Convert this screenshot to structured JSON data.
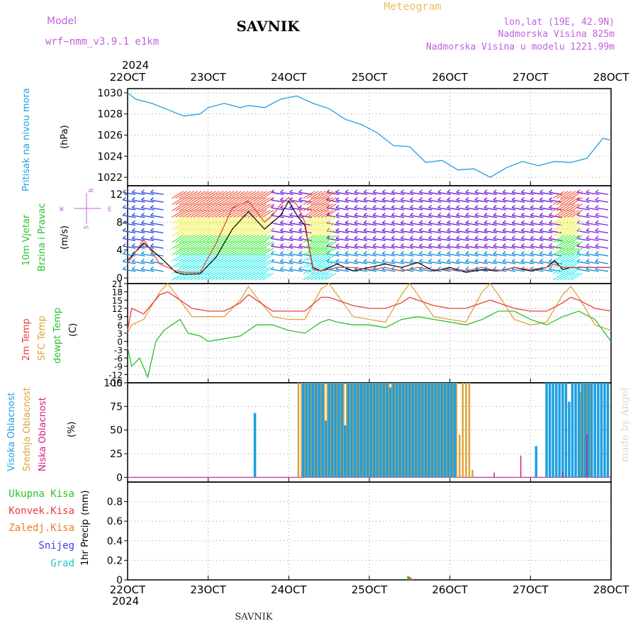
{
  "header": {
    "model_label": "Model",
    "model_name": "wrf−nmm_v3.9.1  e1km",
    "title": "SAVNIK",
    "product": "Meteogram",
    "lonlat": "lon,lat (19E, 42.9N)",
    "elevation": "Nadmorska Visina 825m",
    "model_elevation": "Nadmorska Visina u modelu 1221.99m",
    "year": "2024"
  },
  "footer": {
    "year": "2024",
    "station": "SAVNIK",
    "watermark": "made by Angel"
  },
  "colors": {
    "pressure": "#1E9FE0",
    "temp2m": "#E8403A",
    "sfc_temp": "#DDA23A",
    "dewpt": "#2CC02C",
    "high_cloud": "#1E9FE0",
    "mid_cloud": "#DDA23A",
    "low_cloud": "#D0208A",
    "precip_total": "#2CC02C",
    "precip_conv": "#E8403A",
    "precip_frz": "#F07A28",
    "snow": "#4040E0",
    "hail": "#20C8C8",
    "wind_speed": "#000000",
    "wind_gust": "#E8403A"
  },
  "chart_data": [
    {
      "type": "line",
      "title": "",
      "ylabel": "Pritisak na nivou mora",
      "unit": "(hPa)",
      "x_ticks": [
        "22OCT",
        "23OCT",
        "24OCT",
        "25OCT",
        "26OCT",
        "27OCT",
        "28OCT"
      ],
      "ylim": [
        1021.2,
        1030.4
      ],
      "yticks": [
        "1022",
        "1024",
        "1026",
        "1028",
        "1030"
      ],
      "series": [
        {
          "name": "",
          "x": [
            0,
            0.1,
            0.3,
            0.5,
            0.7,
            0.9,
            1.0,
            1.2,
            1.4,
            1.5,
            1.7,
            1.9,
            2.1,
            2.3,
            2.5,
            2.7,
            2.9,
            3.1,
            3.3,
            3.5,
            3.7,
            3.9,
            4.1,
            4.3,
            4.5,
            4.7,
            4.9,
            5.1,
            5.3,
            5.5,
            5.7,
            5.9,
            6.0
          ],
          "values": [
            1030.0,
            1029.4,
            1029.0,
            1028.4,
            1027.8,
            1028.0,
            1028.6,
            1029.0,
            1028.6,
            1028.8,
            1028.6,
            1029.4,
            1029.7,
            1029.0,
            1028.5,
            1027.5,
            1027.0,
            1026.2,
            1025.0,
            1024.9,
            1023.4,
            1023.6,
            1022.7,
            1022.8,
            1022.0,
            1022.9,
            1023.5,
            1023.1,
            1023.5,
            1023.4,
            1023.8,
            1025.7,
            1025.5
          ]
        }
      ]
    },
    {
      "type": "line",
      "title": "",
      "ylabel": "10m Vjetar Brzina i Pravac",
      "unit": "(m/s)",
      "legend": [
        "N",
        "W",
        "E",
        "S"
      ],
      "ylim": [
        -0.8,
        13.2
      ],
      "yticks": [
        "0",
        "4",
        "8",
        "12"
      ],
      "series": [
        {
          "name": "",
          "x": [
            0,
            0.2,
            0.4,
            0.6,
            0.7,
            0.9,
            1.1,
            1.3,
            1.5,
            1.7,
            1.8,
            1.9,
            2.0,
            2.1,
            2.2,
            2.3,
            2.4,
            2.6,
            2.8,
            3.0,
            3.2,
            3.4,
            3.6,
            3.8,
            4.0,
            4.2,
            4.4,
            4.6,
            4.8,
            5.0,
            5.2,
            5.3,
            5.4,
            5.5,
            5.6,
            5.8,
            6.0
          ],
          "values": [
            2.5,
            5.0,
            3.0,
            0.8,
            0.5,
            0.6,
            3.0,
            7.0,
            9.5,
            7.0,
            8.0,
            9.0,
            11.0,
            9.0,
            7.5,
            1.5,
            1.0,
            2.0,
            1.0,
            1.5,
            2.0,
            1.5,
            2.2,
            1.0,
            1.5,
            0.8,
            1.2,
            1.0,
            1.5,
            1.0,
            1.5,
            2.5,
            1.2,
            1.5,
            1.5,
            1.5,
            1.5
          ]
        },
        {
          "name": "",
          "x": [
            0,
            0.2,
            0.4,
            0.6,
            0.7,
            0.9,
            1.1,
            1.3,
            1.5,
            1.7,
            1.8,
            1.9,
            2.0,
            2.1,
            2.2,
            2.3,
            2.4,
            2.6,
            2.8,
            3.0,
            3.2,
            3.4,
            3.6,
            3.8,
            4.0,
            4.2,
            4.4,
            4.6,
            4.8,
            5.0,
            5.2,
            5.3,
            5.4,
            5.5,
            5.6,
            5.8,
            6.0
          ],
          "values": [
            2.0,
            5.5,
            2.0,
            1.0,
            0.8,
            0.8,
            5.0,
            10.0,
            11.0,
            8.0,
            9.0,
            10.5,
            11.5,
            10.5,
            8.0,
            1.2,
            1.0,
            1.5,
            1.5,
            1.2,
            1.5,
            1.0,
            1.5,
            1.2,
            1.2,
            1.0,
            1.5,
            1.0,
            1.5,
            1.2,
            1.5,
            2.0,
            1.5,
            1.5,
            1.5,
            1.5,
            1.5
          ]
        }
      ]
    },
    {
      "type": "line",
      "title": "",
      "ylabel": "2m Temp / SFC Temp / dewpt Temp",
      "unit": "(C)",
      "ylim": [
        -15,
        21
      ],
      "yticks": [
        "21",
        "18",
        "15",
        "12",
        "9",
        "6",
        "3",
        "0",
        "-3",
        "-6",
        "-9",
        "-12",
        "-15"
      ],
      "series": [
        {
          "name": "2m Temp",
          "x": [
            0,
            0.05,
            0.2,
            0.4,
            0.5,
            0.6,
            0.8,
            1.0,
            1.2,
            1.4,
            1.5,
            1.6,
            1.8,
            2.0,
            2.2,
            2.4,
            2.5,
            2.6,
            2.8,
            3.0,
            3.2,
            3.4,
            3.5,
            3.6,
            3.8,
            4.0,
            4.2,
            4.4,
            4.5,
            4.6,
            4.8,
            5.0,
            5.2,
            5.4,
            5.5,
            5.6,
            5.8,
            6.0
          ],
          "values": [
            4,
            12,
            10,
            17,
            18,
            16,
            12,
            11,
            11,
            14,
            17,
            15,
            11,
            11,
            11,
            16,
            16,
            15,
            13,
            12,
            12,
            14,
            16,
            15,
            13,
            12,
            12,
            14,
            15,
            14,
            12,
            11,
            11,
            14,
            16,
            15,
            12,
            11
          ]
        },
        {
          "name": "SFC Temp",
          "x": [
            0,
            0.05,
            0.2,
            0.4,
            0.5,
            0.6,
            0.8,
            1.0,
            1.2,
            1.4,
            1.5,
            1.6,
            1.8,
            2.0,
            2.2,
            2.4,
            2.5,
            2.6,
            2.8,
            3.0,
            3.2,
            3.4,
            3.5,
            3.6,
            3.8,
            4.0,
            4.2,
            4.4,
            4.5,
            4.6,
            4.8,
            5.0,
            5.2,
            5.4,
            5.5,
            5.6,
            5.8,
            6.0
          ],
          "values": [
            3,
            6,
            8,
            18,
            21,
            17,
            9,
            9,
            9,
            15,
            20,
            16,
            9,
            8,
            8,
            19,
            21,
            17,
            9,
            8,
            7,
            17,
            21,
            17,
            9,
            8,
            7,
            18,
            21,
            17,
            8,
            6,
            7,
            17,
            20,
            16,
            6,
            4
          ]
        },
        {
          "name": "dewpt Temp",
          "x": [
            0,
            0.05,
            0.15,
            0.25,
            0.35,
            0.45,
            0.55,
            0.65,
            0.75,
            0.9,
            1.0,
            1.2,
            1.4,
            1.6,
            1.8,
            2.0,
            2.2,
            2.4,
            2.5,
            2.6,
            2.8,
            3.0,
            3.2,
            3.4,
            3.6,
            3.8,
            4.0,
            4.2,
            4.4,
            4.6,
            4.8,
            5.0,
            5.2,
            5.4,
            5.6,
            5.8,
            6.0
          ],
          "values": [
            -2,
            -9,
            -6,
            -13,
            0,
            4,
            6,
            8,
            3,
            2,
            0,
            1,
            2,
            6,
            6,
            4,
            3,
            7,
            8,
            7,
            6,
            6,
            5,
            8,
            9,
            8,
            7,
            6,
            8,
            11,
            11,
            8,
            6,
            9,
            11,
            8,
            0
          ]
        }
      ]
    },
    {
      "type": "bar",
      "title": "",
      "ylabel": "Visoka Oblacnost / Srednja Oblacnost / Niska Oblacnost",
      "unit": "(%)",
      "ylim": [
        -5,
        100
      ],
      "yticks": [
        "0",
        "25",
        "50",
        "75",
        "100"
      ],
      "series": [
        {
          "name": "Visoka Oblacnost",
          "x": [
            1.58,
            2.18,
            2.22,
            2.26,
            2.3,
            2.34,
            2.38,
            2.42,
            2.46,
            2.5,
            2.54,
            2.58,
            2.62,
            2.66,
            2.7,
            2.74,
            2.78,
            2.82,
            2.86,
            2.9,
            2.94,
            2.98,
            3.02,
            3.06,
            3.1,
            3.14,
            3.18,
            3.22,
            3.26,
            3.3,
            3.34,
            3.38,
            3.42,
            3.46,
            3.5,
            3.54,
            3.58,
            3.62,
            3.66,
            3.7,
            3.74,
            3.78,
            3.82,
            3.86,
            3.9,
            3.94,
            3.98,
            4.02,
            4.06,
            5.07,
            5.2,
            5.24,
            5.28,
            5.32,
            5.36,
            5.4,
            5.44,
            5.48,
            5.52,
            5.56,
            5.6,
            5.64,
            5.68,
            5.72,
            5.76,
            5.8,
            5.84,
            5.88,
            5.92,
            5.96
          ],
          "values": [
            68,
            100,
            100,
            100,
            100,
            100,
            100,
            100,
            60,
            100,
            100,
            100,
            100,
            100,
            55,
            100,
            100,
            100,
            100,
            100,
            100,
            100,
            100,
            100,
            100,
            100,
            100,
            100,
            95,
            100,
            100,
            100,
            100,
            100,
            100,
            100,
            100,
            100,
            100,
            100,
            100,
            100,
            100,
            100,
            100,
            100,
            100,
            100,
            100,
            33,
            100,
            100,
            100,
            100,
            100,
            100,
            100,
            80,
            100,
            100,
            100,
            100,
            100,
            100,
            100,
            100,
            100,
            100,
            100,
            100
          ]
        },
        {
          "name": "Srednja Oblacnost",
          "x": [
            2.12,
            2.16,
            2.2,
            2.24,
            2.28,
            2.32,
            2.36,
            2.4,
            2.44,
            2.48,
            2.52,
            2.56,
            2.6,
            2.64,
            2.68,
            2.72,
            2.76,
            2.8,
            2.84,
            2.88,
            2.92,
            2.96,
            3.0,
            3.04,
            3.08,
            3.12,
            3.16,
            3.2,
            3.24,
            3.28,
            3.32,
            3.36,
            3.4,
            3.44,
            3.48,
            3.52,
            3.56,
            3.6,
            3.64,
            3.68,
            3.72,
            3.76,
            3.8,
            3.84,
            3.88,
            3.92,
            3.96,
            4.0,
            4.04,
            4.08,
            4.12,
            4.16,
            4.2,
            4.24,
            4.28,
            5.62,
            5.66,
            5.7,
            5.74
          ],
          "values": [
            100,
            100,
            100,
            100,
            100,
            100,
            100,
            100,
            100,
            100,
            100,
            100,
            100,
            100,
            100,
            100,
            100,
            100,
            100,
            100,
            100,
            100,
            100,
            100,
            100,
            100,
            100,
            100,
            100,
            100,
            100,
            100,
            100,
            100,
            100,
            100,
            100,
            100,
            100,
            100,
            100,
            100,
            100,
            100,
            100,
            100,
            100,
            100,
            100,
            100,
            45,
            100,
            100,
            100,
            8,
            90,
            100,
            100,
            100
          ]
        },
        {
          "name": "Niska Oblacnost",
          "x": [
            4.55,
            4.88,
            5.4,
            5.7
          ],
          "values": [
            5,
            23,
            5,
            45
          ]
        }
      ]
    },
    {
      "type": "bar",
      "title": "",
      "ylabel": "1hr Precip",
      "unit": "(mm)",
      "ylim": [
        0,
        1.0
      ],
      "yticks": [
        "0",
        "0.2",
        "0.4",
        "0.6",
        "0.8"
      ],
      "legend": [
        "Ukupna Kisa",
        "Konvek.Kisa",
        "Zaledj.Kisa",
        "Snijeg",
        "Grad"
      ],
      "series": [
        {
          "name": "Ukupna Kisa",
          "x": [
            3.48
          ],
          "values": [
            0.04
          ]
        },
        {
          "name": "Konvek.Kisa",
          "x": [
            3.5
          ],
          "values": [
            0.03
          ]
        },
        {
          "name": "Zaledj.Kisa",
          "x": [
            3.52
          ],
          "values": [
            0.02
          ]
        }
      ]
    }
  ]
}
